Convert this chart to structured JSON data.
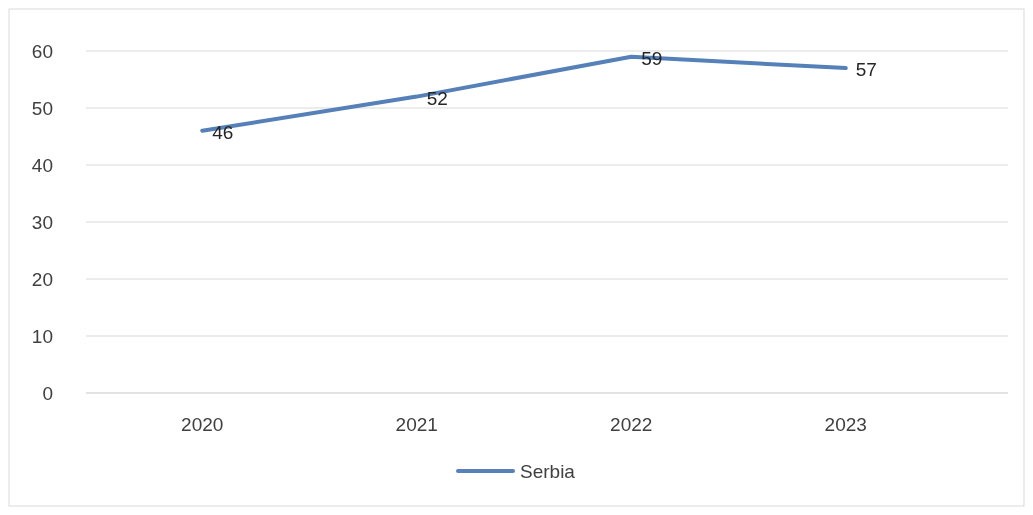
{
  "chart_data": {
    "type": "line",
    "categories": [
      "2020",
      "2021",
      "2022",
      "2023"
    ],
    "series": [
      {
        "name": "Serbia",
        "color": "#5580b8",
        "values": [
          46,
          52,
          59,
          57
        ]
      }
    ],
    "ylim": [
      0,
      60
    ],
    "yticks": [
      0,
      10,
      20,
      30,
      40,
      50,
      60
    ],
    "grid": "y",
    "legend": "bottom",
    "data_labels": true,
    "marker": "none",
    "line_style": "solid"
  }
}
